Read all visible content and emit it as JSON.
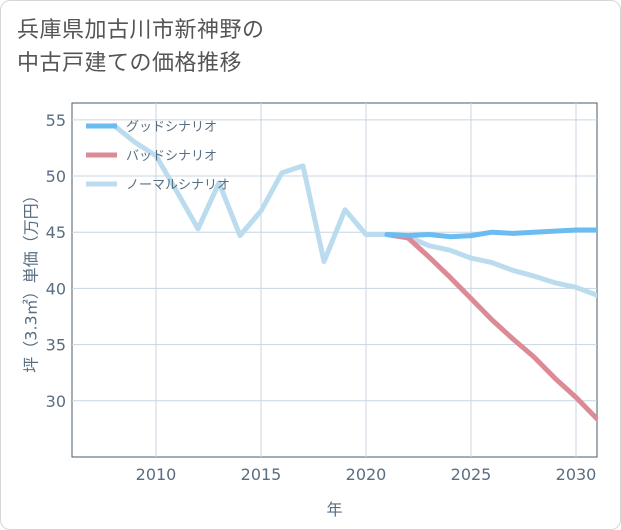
{
  "title": {
    "line1": "兵庫県加古川市新神野の",
    "line2": "中古戸建ての価格推移"
  },
  "chart_data": {
    "type": "line",
    "title": "兵庫県加古川市新神野の中古戸建ての価格推移",
    "xlabel": "年",
    "ylabel": "坪（3.3㎡）単価（万円）",
    "xlim": [
      2006,
      2031
    ],
    "ylim": [
      25,
      56.5
    ],
    "xticks": [
      2010,
      2015,
      2020,
      2025,
      2030
    ],
    "yticks": [
      30,
      35,
      40,
      45,
      50,
      55
    ],
    "legend_position": "top-left",
    "series": [
      {
        "name": "グッドシナリオ",
        "color": "#6bbcf0",
        "x": [
          2021,
          2022,
          2023,
          2024,
          2025,
          2026,
          2027,
          2028,
          2029,
          2030,
          2031
        ],
        "values": [
          44.8,
          44.7,
          44.8,
          44.6,
          44.7,
          45.0,
          44.9,
          45.0,
          45.1,
          45.2,
          45.2
        ]
      },
      {
        "name": "バッドシナリオ",
        "color": "#dc8a95",
        "x": [
          2021,
          2022,
          2023,
          2024,
          2025,
          2026,
          2027,
          2028,
          2029,
          2030,
          2031
        ],
        "values": [
          44.8,
          44.5,
          42.8,
          41.0,
          39.1,
          37.2,
          35.5,
          33.9,
          32.0,
          30.3,
          28.4
        ]
      },
      {
        "name": "ノーマルシナリオ",
        "color": "#bbdcee",
        "x": [
          2008,
          2009,
          2010,
          2011,
          2012,
          2013,
          2014,
          2015,
          2016,
          2017,
          2018,
          2019,
          2020,
          2021,
          2022,
          2023,
          2024,
          2025,
          2026,
          2027,
          2028,
          2029,
          2030,
          2031
        ],
        "values": [
          54.5,
          53.0,
          51.8,
          48.6,
          45.3,
          49.4,
          44.7,
          46.9,
          50.3,
          50.9,
          42.4,
          47.0,
          44.8,
          44.8,
          44.6,
          43.8,
          43.4,
          42.7,
          42.3,
          41.6,
          41.1,
          40.5,
          40.1,
          39.4
        ]
      }
    ]
  }
}
